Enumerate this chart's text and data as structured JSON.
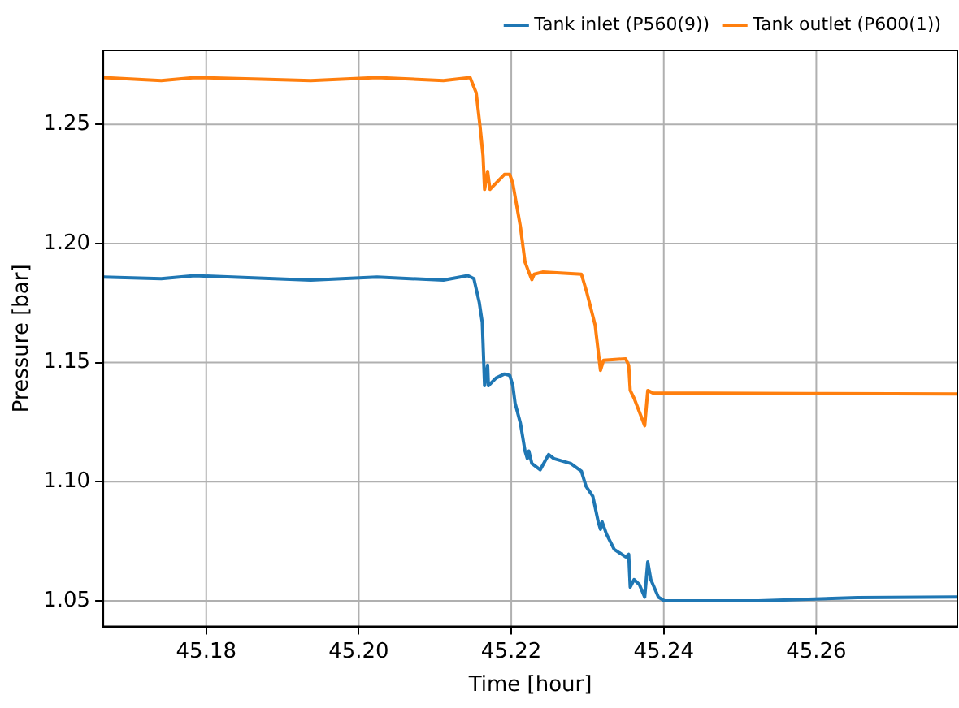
{
  "chart_data": {
    "type": "line",
    "xlabel": "Time [hour]",
    "ylabel": "Pressure [bar]",
    "xlim": [
      45.1665,
      45.2785
    ],
    "ylim": [
      1.0392,
      1.2811
    ],
    "xticks": [
      45.18,
      {
        "value": 45.2,
        "label": "45.20"
      },
      45.22,
      45.24,
      45.26
    ],
    "yticks": [
      1.05,
      {
        "value": 1.1,
        "label": "1.10"
      },
      1.15,
      {
        "value": 1.2,
        "label": "1.20"
      },
      1.25
    ],
    "grid": true,
    "legend": "top right",
    "line_style": "solid",
    "marker": "none",
    "series": [
      {
        "name": "Tank inlet (P560(9))",
        "color": "#1f77b4",
        "x": [
          45.1665,
          45.1741,
          45.1785,
          45.1937,
          45.2024,
          45.2111,
          45.2143,
          45.2151,
          45.2158,
          45.2162,
          45.2165,
          45.2169,
          45.217,
          45.218,
          45.2191,
          45.2198,
          45.2202,
          45.2205,
          45.2212,
          45.2218,
          45.2221,
          45.2223,
          45.2227,
          45.2238,
          45.2249,
          45.2256,
          45.2278,
          45.2292,
          45.2298,
          45.2307,
          45.2314,
          45.2317,
          45.2319,
          45.2325,
          45.2335,
          45.235,
          45.2354,
          45.2356,
          45.2361,
          45.2368,
          45.2375,
          45.2379,
          45.2383,
          45.2393,
          45.2401,
          45.2524,
          45.2654,
          45.2785
        ],
        "values": [
          1.1859,
          1.1852,
          1.1865,
          1.1846,
          1.1859,
          1.1846,
          1.1865,
          1.1852,
          1.1753,
          1.1668,
          1.1403,
          1.1489,
          1.1403,
          1.1435,
          1.1452,
          1.1446,
          1.1403,
          1.133,
          1.1245,
          1.1129,
          1.1097,
          1.1129,
          1.1076,
          1.105,
          1.1114,
          1.1097,
          1.1076,
          1.1044,
          1.0981,
          1.0938,
          1.0832,
          1.08,
          1.0832,
          1.0779,
          1.0716,
          1.0684,
          1.0695,
          1.0557,
          1.0589,
          1.0568,
          1.0515,
          1.0663,
          1.0589,
          1.0515,
          1.05,
          1.05,
          1.0513,
          1.0516
        ]
      },
      {
        "name": "Tank outlet (P600(1))",
        "color": "#ff7f0e",
        "x": [
          45.1665,
          45.1741,
          45.1785,
          45.1872,
          45.1937,
          45.2024,
          45.2111,
          45.2146,
          45.2154,
          45.2159,
          45.2163,
          45.2165,
          45.2169,
          45.2172,
          45.2191,
          45.2198,
          45.2202,
          45.2212,
          45.2218,
          45.2223,
          45.2227,
          45.223,
          45.2241,
          45.2292,
          45.2299,
          45.231,
          45.2315,
          45.2317,
          45.2321,
          45.235,
          45.2354,
          45.2356,
          45.2361,
          45.2375,
          45.2379,
          45.2386,
          45.2589,
          45.2785
        ],
        "values": [
          1.2697,
          1.2684,
          1.2697,
          1.269,
          1.2684,
          1.2697,
          1.2684,
          1.2697,
          1.2633,
          1.2494,
          1.2367,
          1.2227,
          1.2303,
          1.2227,
          1.229,
          1.229,
          1.2252,
          1.207,
          1.1922,
          1.188,
          1.1848,
          1.1871,
          1.188,
          1.1871,
          1.1795,
          1.1657,
          1.152,
          1.1467,
          1.151,
          1.1516,
          1.1489,
          1.1383,
          1.1351,
          1.1235,
          1.1383,
          1.1372,
          1.137,
          1.1368
        ]
      }
    ]
  }
}
